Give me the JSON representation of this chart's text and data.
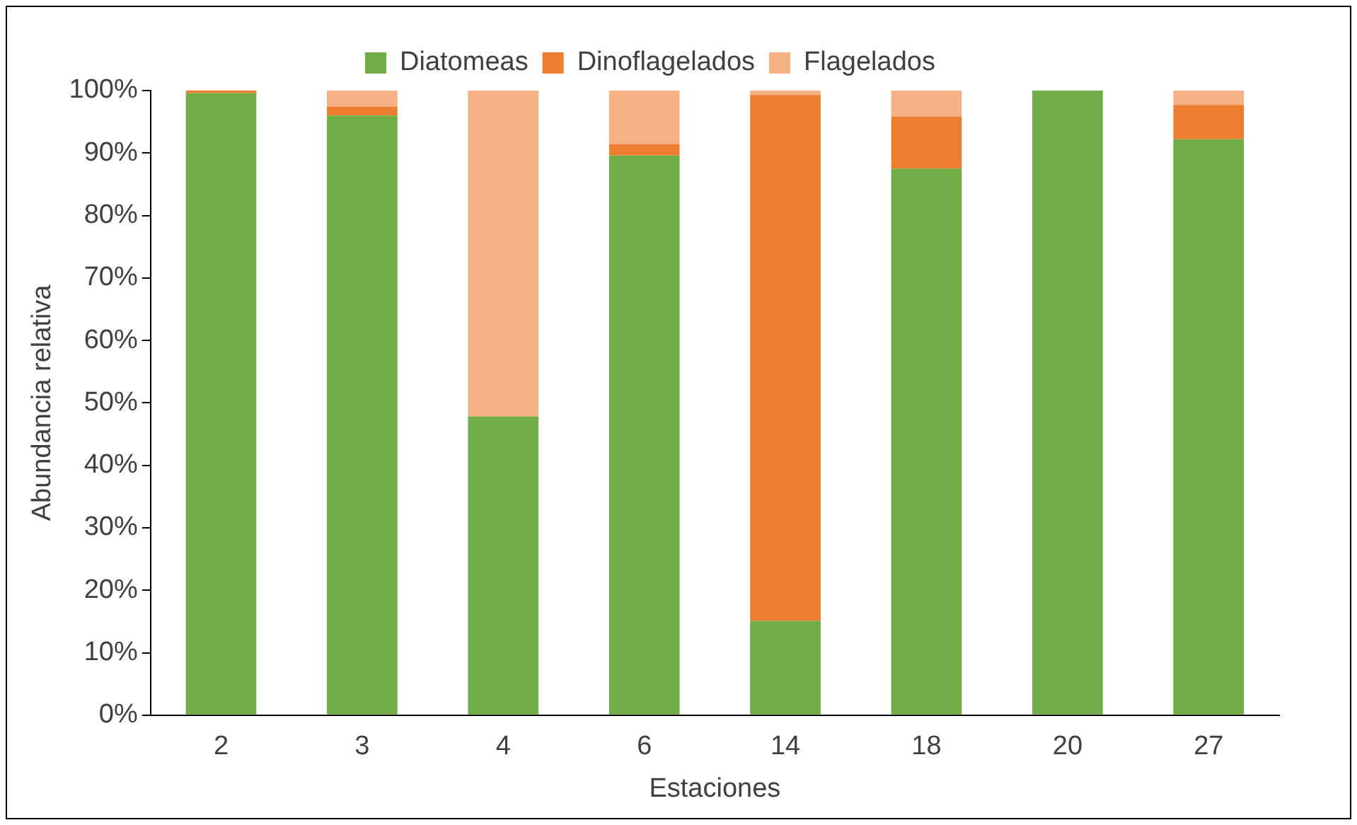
{
  "chart_data": {
    "type": "bar",
    "stacked": true,
    "xlabel": "Estaciones",
    "ylabel": "Abundancia relativa",
    "categories": [
      "2",
      "3",
      "4",
      "6",
      "14",
      "18",
      "20",
      "27"
    ],
    "series": [
      {
        "name": "Diatomeas",
        "color": "#70ad47",
        "values": [
          99.6,
          96.0,
          47.8,
          89.6,
          15.1,
          87.5,
          100,
          92.2
        ]
      },
      {
        "name": "Dinoflagelados",
        "color": "#ed7d31",
        "values": [
          0.4,
          1.4,
          0,
          1.8,
          84.2,
          8.3,
          0,
          5.5
        ]
      },
      {
        "name": "Flagelados",
        "color": "#f4b183",
        "values": [
          0,
          2.6,
          52.2,
          8.6,
          0.7,
          4.2,
          0,
          2.3
        ]
      }
    ],
    "ylim": [
      0,
      100
    ],
    "yticks": [
      {
        "value": 0,
        "label": "0%"
      },
      {
        "value": 10,
        "label": "10%"
      },
      {
        "value": 20,
        "label": "20%"
      },
      {
        "value": 30,
        "label": "30%"
      },
      {
        "value": 40,
        "label": "40%"
      },
      {
        "value": 50,
        "label": "50%"
      },
      {
        "value": 60,
        "label": "60%"
      },
      {
        "value": 70,
        "label": "70%"
      },
      {
        "value": 80,
        "label": "80%"
      },
      {
        "value": 90,
        "label": "90%"
      },
      {
        "value": 100,
        "label": "100%"
      }
    ],
    "grid": false,
    "legend": "top"
  }
}
